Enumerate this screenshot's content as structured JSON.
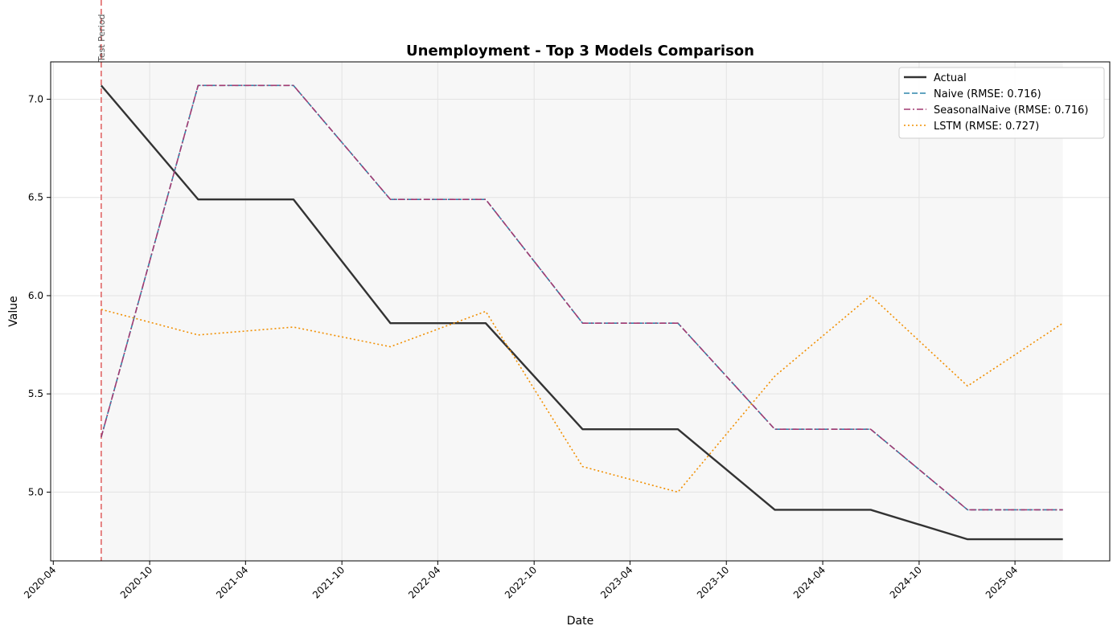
{
  "chart_data": {
    "type": "line",
    "title": "Unemployment - Top 3 Models Comparison",
    "xlabel": "Date",
    "ylabel": "Value",
    "x_axis_type": "date",
    "xlim": [
      "2020-03-27",
      "2025-09-28"
    ],
    "ylim": [
      4.65,
      7.19
    ],
    "x_ticks": [
      "2020-04",
      "2020-10",
      "2021-04",
      "2021-10",
      "2022-04",
      "2022-10",
      "2023-04",
      "2023-10",
      "2024-04",
      "2024-10",
      "2025-04"
    ],
    "y_ticks": [
      "5.0",
      "5.5",
      "6.0",
      "6.5",
      "7.0"
    ],
    "grid": true,
    "legend_position": "top-right",
    "test_period": {
      "start": "2020-07-01",
      "end": "2025-07-01",
      "label": "Test Period",
      "line_color": "#e06666",
      "shade_color": "#f7f7f7"
    },
    "x": [
      "2020-07-01",
      "2021-01-01",
      "2021-07-01",
      "2022-01-01",
      "2022-07-01",
      "2023-01-01",
      "2023-07-01",
      "2024-01-01",
      "2024-07-01",
      "2025-01-01",
      "2025-07-01"
    ],
    "series": [
      {
        "name": "Actual",
        "color": "#333333",
        "dash": "solid",
        "width": 2.4,
        "values": [
          7.07,
          6.49,
          6.49,
          5.86,
          5.86,
          5.32,
          5.32,
          4.91,
          4.91,
          4.76,
          4.76
        ]
      },
      {
        "name": "Naive (RMSE: 0.716)",
        "color": "#2e86ab",
        "dash": "dashed",
        "width": 1.6,
        "values": [
          5.28,
          7.07,
          7.07,
          6.49,
          6.49,
          5.86,
          5.86,
          5.32,
          5.32,
          4.91,
          4.91
        ]
      },
      {
        "name": "SeasonalNaive (RMSE: 0.716)",
        "color": "#a23b72",
        "dash": "dashdot",
        "width": 1.6,
        "values": [
          5.28,
          7.07,
          7.07,
          6.49,
          6.49,
          5.86,
          5.86,
          5.32,
          5.32,
          4.91,
          4.91
        ]
      },
      {
        "name": "LSTM (RMSE: 0.727)",
        "color": "#f18f01",
        "dash": "dotted",
        "width": 1.6,
        "values": [
          5.93,
          5.8,
          5.84,
          5.74,
          5.92,
          5.13,
          5.0,
          5.59,
          6.0,
          5.54,
          5.86
        ]
      }
    ]
  }
}
